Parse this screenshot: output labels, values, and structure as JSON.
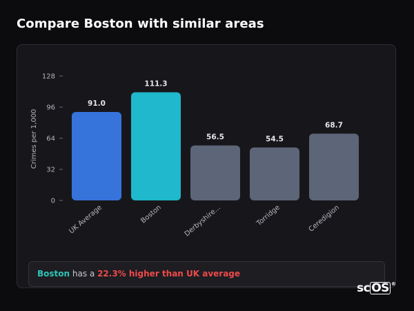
{
  "title": "Compare Boston with similar areas",
  "chart_data": {
    "type": "bar",
    "ylabel": "Crimes per 1,000",
    "xlabel": "",
    "ylim": [
      0,
      128
    ],
    "yticks": [
      0,
      32,
      64,
      96,
      128
    ],
    "categories": [
      "UK Average",
      "Boston",
      "Derbyshire...",
      "Torridge",
      "Ceredigion"
    ],
    "values": [
      91.0,
      111.3,
      56.5,
      54.5,
      68.7
    ],
    "value_labels": [
      "91.0",
      "111.3",
      "56.5",
      "54.5",
      "68.7"
    ],
    "colors": [
      "#3674dc",
      "#1fb8cc",
      "#5d6678",
      "#5d6678",
      "#5d6678"
    ],
    "grid": false
  },
  "summary": {
    "place": "Boston",
    "middle": " has a ",
    "diff": "22.3% higher than UK average"
  },
  "logo": {
    "prefix": "sc",
    "boxed": "OS",
    "mark": "®"
  },
  "colors": {
    "accent_teal": "#2ec4b6",
    "accent_red": "#ef4a4a"
  }
}
